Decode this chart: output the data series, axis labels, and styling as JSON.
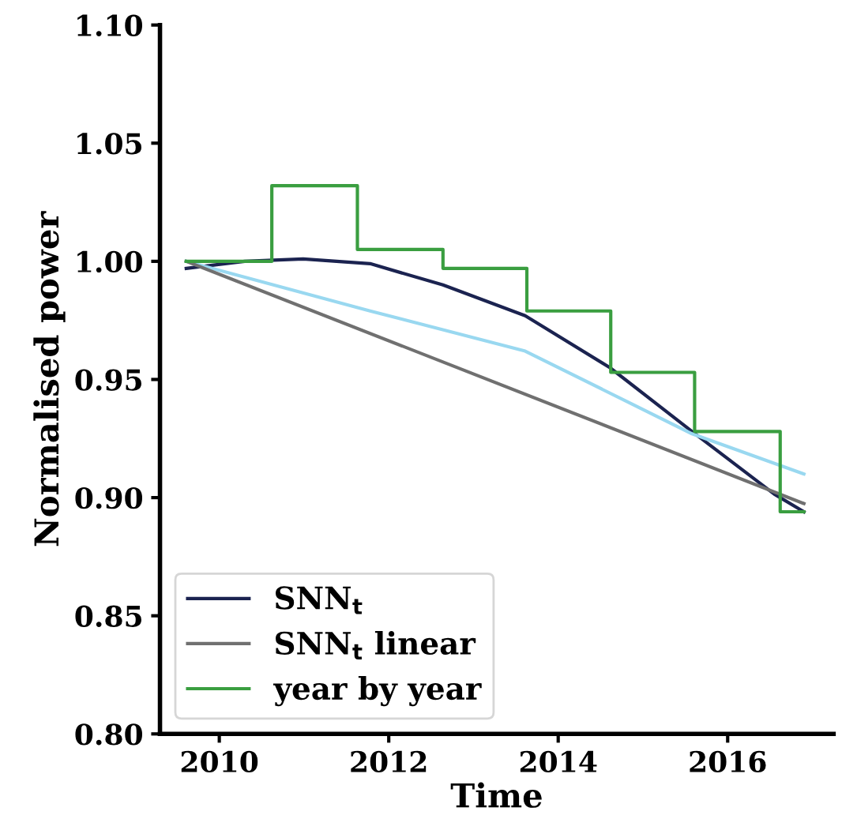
{
  "chart_data": {
    "type": "line",
    "xlabel": "Time",
    "ylabel": "Normalised power",
    "xlim": [
      2009.3,
      2017.25
    ],
    "xticks": [
      2010,
      2012,
      2014,
      2016
    ],
    "ylim": [
      0.8,
      1.1
    ],
    "yticks": [
      {
        "value": 0.8,
        "label": "0.80"
      },
      {
        "value": 0.85,
        "label": "0.85"
      },
      {
        "value": 0.9,
        "label": "0.90"
      },
      {
        "value": 0.95,
        "label": "0.95"
      },
      {
        "value": 1.0,
        "label": "1.00"
      },
      {
        "value": 1.05,
        "label": "1.05"
      },
      {
        "value": 1.1,
        "label": "1.10"
      }
    ],
    "grid": false,
    "legend": "bottom left",
    "marker": "none",
    "line_style": "solid",
    "series": [
      {
        "name": "SNN$_{t}$",
        "color": "#1b2350",
        "x": [
          2009.61,
          2010.3,
          2010.99,
          2011.78,
          2012.64,
          2013.61,
          2014.61,
          2015.58,
          2016.55,
          2016.9
        ],
        "values": [
          0.997,
          1.0,
          1.001,
          0.999,
          0.99,
          0.977,
          0.955,
          0.928,
          0.9015,
          0.894
        ]
      },
      {
        "color": "#99d8f0",
        "x": [
          2009.61,
          2011.78,
          2013.61,
          2015.58,
          2016.9
        ],
        "values": [
          1.0,
          0.979,
          0.962,
          0.927,
          0.91
        ]
      },
      {
        "name": "SNN$_{t}$ linear",
        "color": "#707070",
        "x": [
          2009.61,
          2016.9
        ],
        "values": [
          1.0,
          0.8975
        ]
      },
      {
        "name": "year by year",
        "type": "step",
        "color": "#3a9e40",
        "x": [
          2009.61,
          2010.62,
          2011.63,
          2012.64,
          2013.63,
          2014.62,
          2015.61,
          2016.62,
          2016.9
        ],
        "values": [
          1.0,
          1.032,
          1.005,
          0.997,
          0.979,
          0.953,
          0.928,
          0.894,
          0.894
        ]
      }
    ]
  }
}
